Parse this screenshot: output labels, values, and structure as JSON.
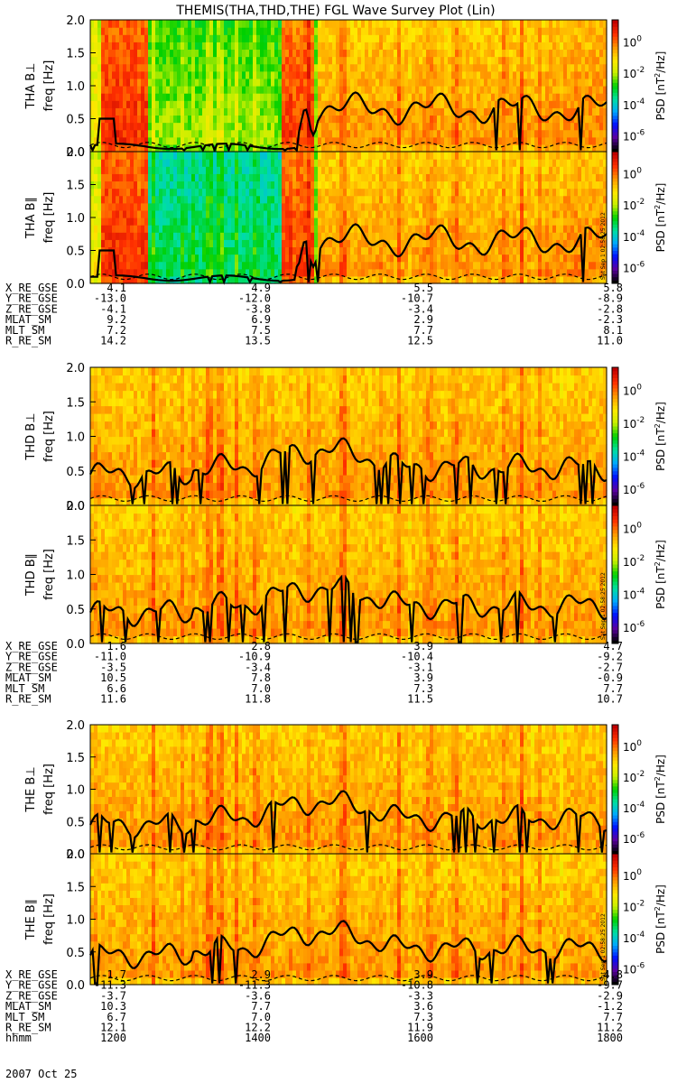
{
  "title": "THEMIS(THA,THD,THE) FGL Wave Survey Plot (Lin)",
  "stamp": "Sat Sep  1 02:58:25 2012",
  "chart_data": {
    "type": "heatmap",
    "title": "THEMIS(THA,THD,THE) FGL Wave Survey Plot (Lin)",
    "ylabel": "freq [Hz]",
    "ylim": [
      0,
      2.0
    ],
    "yticks": [
      "0.0",
      "0.5",
      "1.0",
      "1.5",
      "2.0"
    ],
    "colorbar": {
      "label": "PSD [nT",
      "label_sup": "2",
      "label_end": "/Hz]",
      "scale": "log",
      "range_exp": [
        -7,
        1.4
      ],
      "ticks": [
        {
          "base": "10",
          "exp": "0",
          "val": 0
        },
        {
          "base": "10",
          "exp": "-2",
          "val": -2
        },
        {
          "base": "10",
          "exp": "-4",
          "val": -4
        },
        {
          "base": "10",
          "exp": "-6",
          "val": -6
        }
      ],
      "colors": [
        "#000000",
        "#5a00a0",
        "#0010ff",
        "#00a8ff",
        "#00e0a0",
        "#00d000",
        "#c8f000",
        "#ffe800",
        "#ff9800",
        "#ff3000",
        "#c00000"
      ]
    },
    "x_time_range": [
      1200,
      1800
    ],
    "groups": [
      {
        "name": "THA",
        "panels": [
          {
            "label": "THA B⊥",
            "component": "perp"
          },
          {
            "label": "THA B∥",
            "component": "par"
          }
        ],
        "orbit_rows": [
          {
            "label": "X_RE_GSE",
            "values": [
              "4.1",
              "4.9",
              "5.5",
              "5.8"
            ]
          },
          {
            "label": "Y_RE_GSE",
            "values": [
              "-13.0",
              "-12.0",
              "-10.7",
              "-8.9"
            ]
          },
          {
            "label": "Z_RE_GSE",
            "values": [
              "-4.1",
              "-3.8",
              "-3.4",
              "-2.8"
            ]
          },
          {
            "label": "MLAT_SM",
            "values": [
              "9.2",
              "6.9",
              "2.9",
              "-2.3"
            ]
          },
          {
            "label": "MLT_SM",
            "values": [
              "7.2",
              "7.5",
              "7.7",
              "8.1"
            ]
          },
          {
            "label": "R_RE_SM",
            "values": [
              "14.2",
              "13.5",
              "12.5",
              "11.0"
            ]
          }
        ]
      },
      {
        "name": "THD",
        "panels": [
          {
            "label": "THD B⊥",
            "component": "perp"
          },
          {
            "label": "THD B∥",
            "component": "par"
          }
        ],
        "orbit_rows": [
          {
            "label": "X_RE_GSE",
            "values": [
              "1.6",
              "2.8",
              "3.9",
              "4.7"
            ]
          },
          {
            "label": "Y_RE_GSE",
            "values": [
              "-11.0",
              "-10.9",
              "-10.4",
              "-9.2"
            ]
          },
          {
            "label": "Z_RE_GSE",
            "values": [
              "-3.5",
              "-3.4",
              "-3.1",
              "-2.7"
            ]
          },
          {
            "label": "MLAT_SM",
            "values": [
              "10.5",
              "7.8",
              "3.9",
              "-0.9"
            ]
          },
          {
            "label": "MLT_SM",
            "values": [
              "6.6",
              "7.0",
              "7.3",
              "7.7"
            ]
          },
          {
            "label": "R_RE_SM",
            "values": [
              "11.6",
              "11.8",
              "11.5",
              "10.7"
            ]
          }
        ]
      },
      {
        "name": "THE",
        "panels": [
          {
            "label": "THE B⊥",
            "component": "perp"
          },
          {
            "label": "THE B∥",
            "component": "par"
          }
        ],
        "orbit_rows": [
          {
            "label": "X_RE_GSE",
            "values": [
              "1.7",
              "2.9",
              "3.9",
              "4.8"
            ]
          },
          {
            "label": "Y_RE_GSE",
            "values": [
              "-11.3",
              "-11.3",
              "-10.8",
              "-9.7"
            ]
          },
          {
            "label": "Z_RE_GSE",
            "values": [
              "-3.7",
              "-3.6",
              "-3.3",
              "-2.9"
            ]
          },
          {
            "label": "MLAT_SM",
            "values": [
              "10.3",
              "7.7",
              "3.6",
              "-1.2"
            ]
          },
          {
            "label": "MLT_SM",
            "values": [
              "6.7",
              "7.0",
              "7.3",
              "7.7"
            ]
          },
          {
            "label": "R_RE_SM",
            "values": [
              "12.1",
              "12.2",
              "11.9",
              "11.2"
            ]
          },
          {
            "label": "hhmm",
            "values": [
              "1200",
              "1400",
              "1600",
              "1800"
            ]
          }
        ]
      }
    ],
    "date_label": "2007 Oct 25"
  }
}
